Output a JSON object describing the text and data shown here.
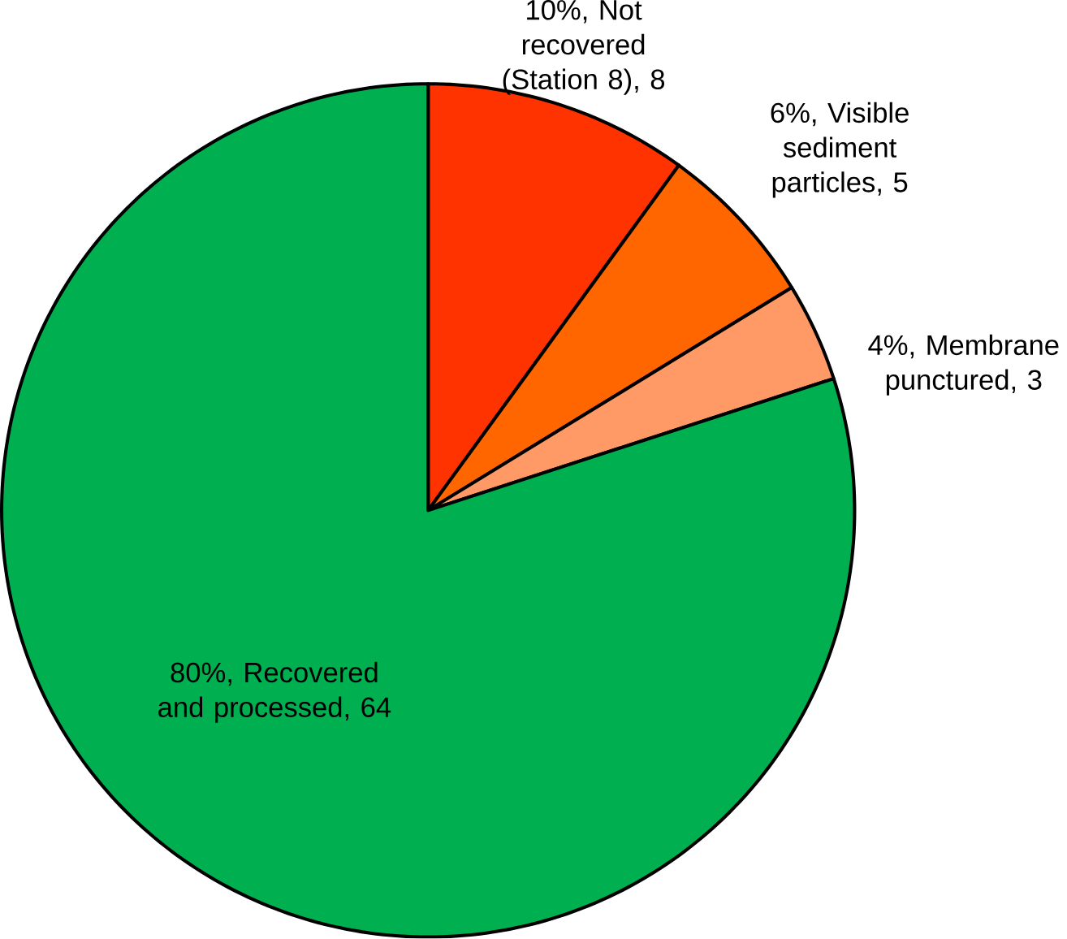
{
  "chart_data": {
    "type": "pie",
    "categories": [
      "10%, Not recovered (Station 8), 8",
      "6%, Visible sediment particles, 5",
      "4%, Membrane punctured, 3",
      "80%, Recovered and processed, 64"
    ],
    "values": [
      8,
      5,
      3,
      64
    ],
    "colors": [
      "#ff3300",
      "#ff6600",
      "#ff9966",
      "#00b050"
    ]
  }
}
